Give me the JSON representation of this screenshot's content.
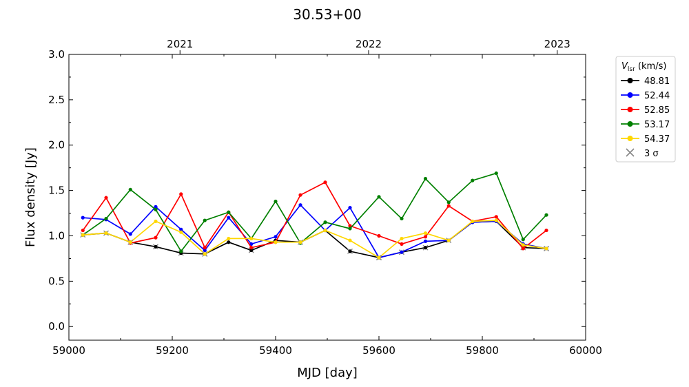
{
  "chart_data": {
    "type": "line",
    "title": "30.53+00",
    "xlabel": "MJD [day]",
    "ylabel": "Flux density [Jy]",
    "xlim": [
      59000,
      60000
    ],
    "ylim": [
      -0.15,
      3.0
    ],
    "x_ticks": [
      59000,
      59200,
      59400,
      59600,
      59800,
      60000
    ],
    "y_ticks": [
      0.0,
      0.5,
      1.0,
      1.5,
      2.0,
      2.5,
      3.0
    ],
    "top_axis": {
      "ticks": [
        {
          "label": "2021",
          "mjd": 59215
        },
        {
          "label": "2022",
          "mjd": 59580
        },
        {
          "label": "2023",
          "mjd": 59945
        }
      ]
    },
    "legend": {
      "title_main": "V",
      "title_sub": "lsr",
      "title_unit": " (km/s)",
      "placement": "outside right",
      "upper_limit_label": "3 σ"
    },
    "x": [
      59027,
      59072,
      59119,
      59168,
      59217,
      59263,
      59309,
      59353,
      59400,
      59448,
      59496,
      59544,
      59600,
      59644,
      59690,
      59735,
      59781,
      59827,
      59879,
      59924
    ],
    "series": [
      {
        "name": "48.81",
        "color": "#000000",
        "values": [
          1.01,
          1.03,
          0.93,
          0.88,
          0.81,
          0.8,
          0.93,
          0.84,
          0.95,
          0.93,
          1.06,
          0.83,
          0.76,
          0.82,
          0.87,
          0.95,
          1.15,
          1.16,
          0.87,
          0.86
        ],
        "upper_limit_idx": [
          3,
          4,
          5,
          7,
          11,
          12,
          13,
          14,
          15,
          18,
          19
        ]
      },
      {
        "name": "52.44",
        "color": "#0000ff",
        "values": [
          1.2,
          1.18,
          1.02,
          1.32,
          1.07,
          0.84,
          1.2,
          0.91,
          0.99,
          1.34,
          1.06,
          1.31,
          0.76,
          0.82,
          0.94,
          0.95,
          1.15,
          1.16,
          0.91,
          0.86
        ],
        "upper_limit_idx": [
          12,
          13
        ]
      },
      {
        "name": "52.85",
        "color": "#ff0000",
        "values": [
          1.06,
          1.42,
          0.92,
          0.98,
          1.46,
          0.87,
          1.26,
          0.87,
          0.93,
          1.45,
          1.59,
          1.11,
          1.0,
          0.91,
          0.99,
          1.33,
          1.16,
          1.21,
          0.86,
          1.06
        ],
        "upper_limit_idx": []
      },
      {
        "name": "53.17",
        "color": "#008000",
        "values": [
          1.01,
          1.19,
          1.51,
          1.29,
          0.83,
          1.17,
          1.26,
          0.97,
          1.38,
          0.92,
          1.15,
          1.08,
          1.43,
          1.19,
          1.63,
          1.37,
          1.61,
          1.69,
          0.96,
          1.23
        ],
        "upper_limit_idx": []
      },
      {
        "name": "54.37",
        "color": "#ffd700",
        "values": [
          1.01,
          1.03,
          0.93,
          1.16,
          1.04,
          0.8,
          0.97,
          0.97,
          0.93,
          0.93,
          1.06,
          0.95,
          0.76,
          0.97,
          1.03,
          0.95,
          1.16,
          1.17,
          0.9,
          0.86
        ],
        "upper_limit_idx": [
          0,
          1,
          2,
          5,
          9,
          12,
          19
        ]
      }
    ],
    "grid": false
  }
}
